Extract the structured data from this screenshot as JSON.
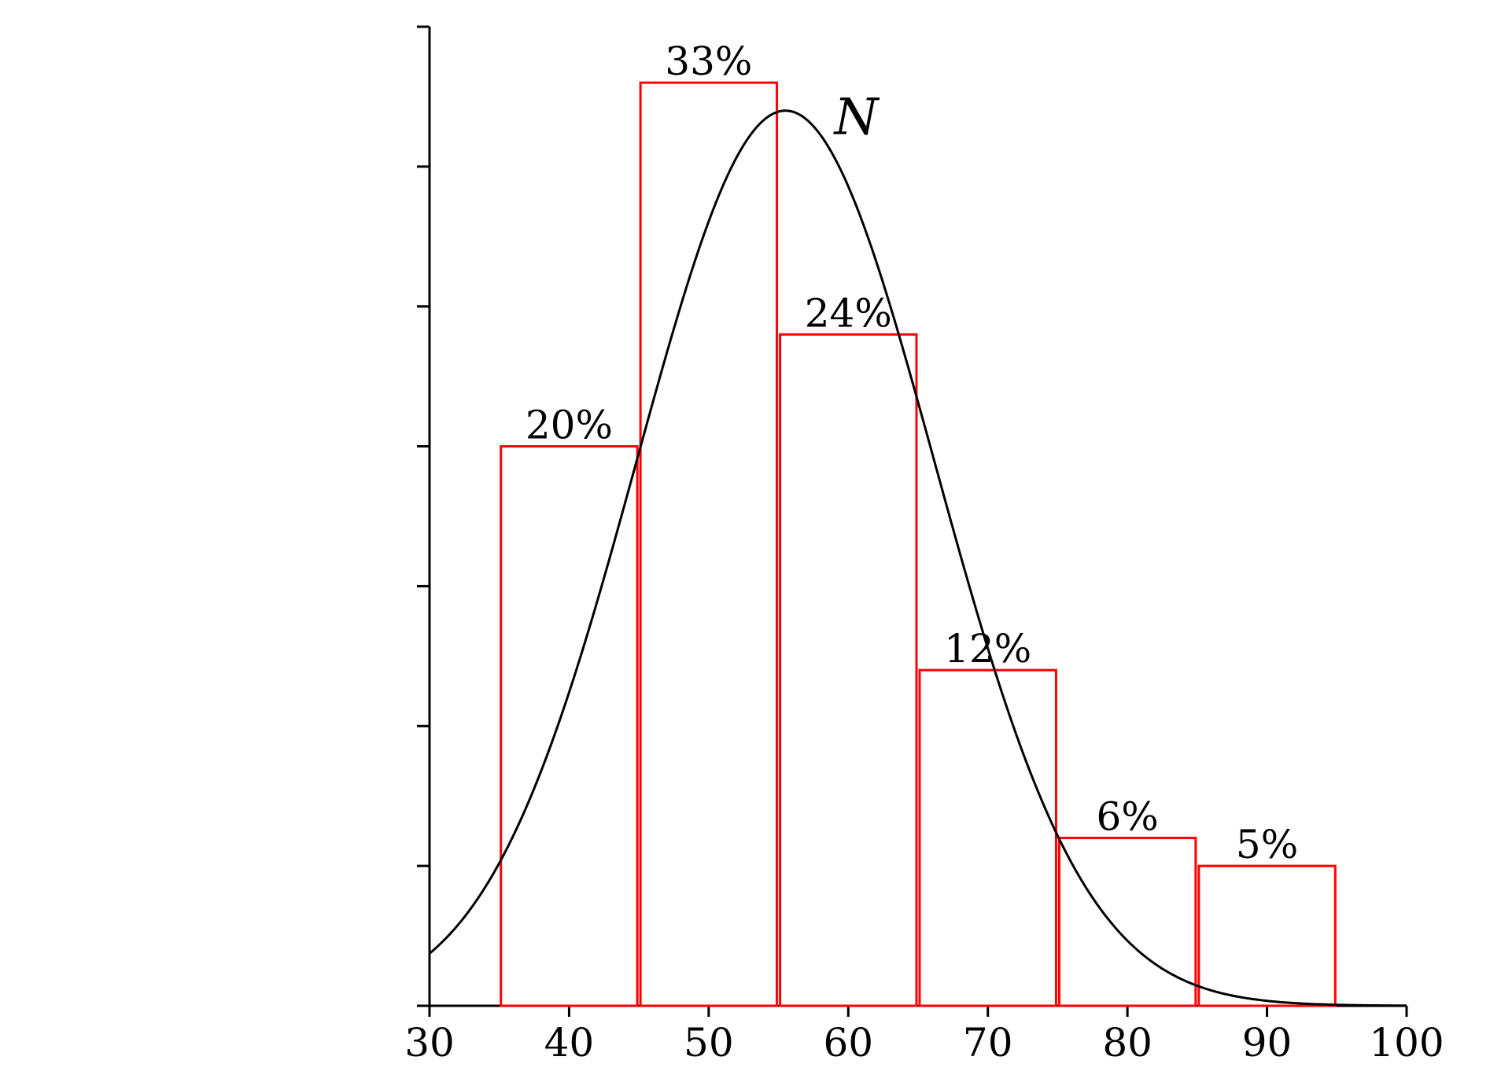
{
  "chart_data": {
    "type": "bar",
    "title": "",
    "xlabel": "",
    "ylabel": "",
    "xlim": [
      30,
      100
    ],
    "ylim": [
      0,
      35
    ],
    "x_ticks": [
      30,
      40,
      50,
      60,
      70,
      80,
      90,
      100
    ],
    "x_tick_labels": [
      "30",
      "40",
      "50",
      "60",
      "70",
      "80",
      "90",
      "100"
    ],
    "y_ticks": [
      0,
      5,
      10,
      15,
      20,
      25,
      30,
      35
    ],
    "grid": false,
    "bars": [
      {
        "x_start": 35,
        "x_end": 45,
        "value": 20,
        "label": "20%"
      },
      {
        "x_start": 45,
        "x_end": 55,
        "value": 33,
        "label": "33%"
      },
      {
        "x_start": 55,
        "x_end": 65,
        "value": 24,
        "label": "24%"
      },
      {
        "x_start": 65,
        "x_end": 75,
        "value": 12,
        "label": "12%"
      },
      {
        "x_start": 75,
        "x_end": 85,
        "value": 6,
        "label": "6%"
      },
      {
        "x_start": 85,
        "x_end": 95,
        "value": 5,
        "label": "5%"
      }
    ],
    "bar_color": "#ff0000",
    "curve": {
      "label": "N",
      "type": "normal",
      "mean": 55.5,
      "sd": 10.7,
      "peak": 32,
      "color": "#000000"
    }
  }
}
